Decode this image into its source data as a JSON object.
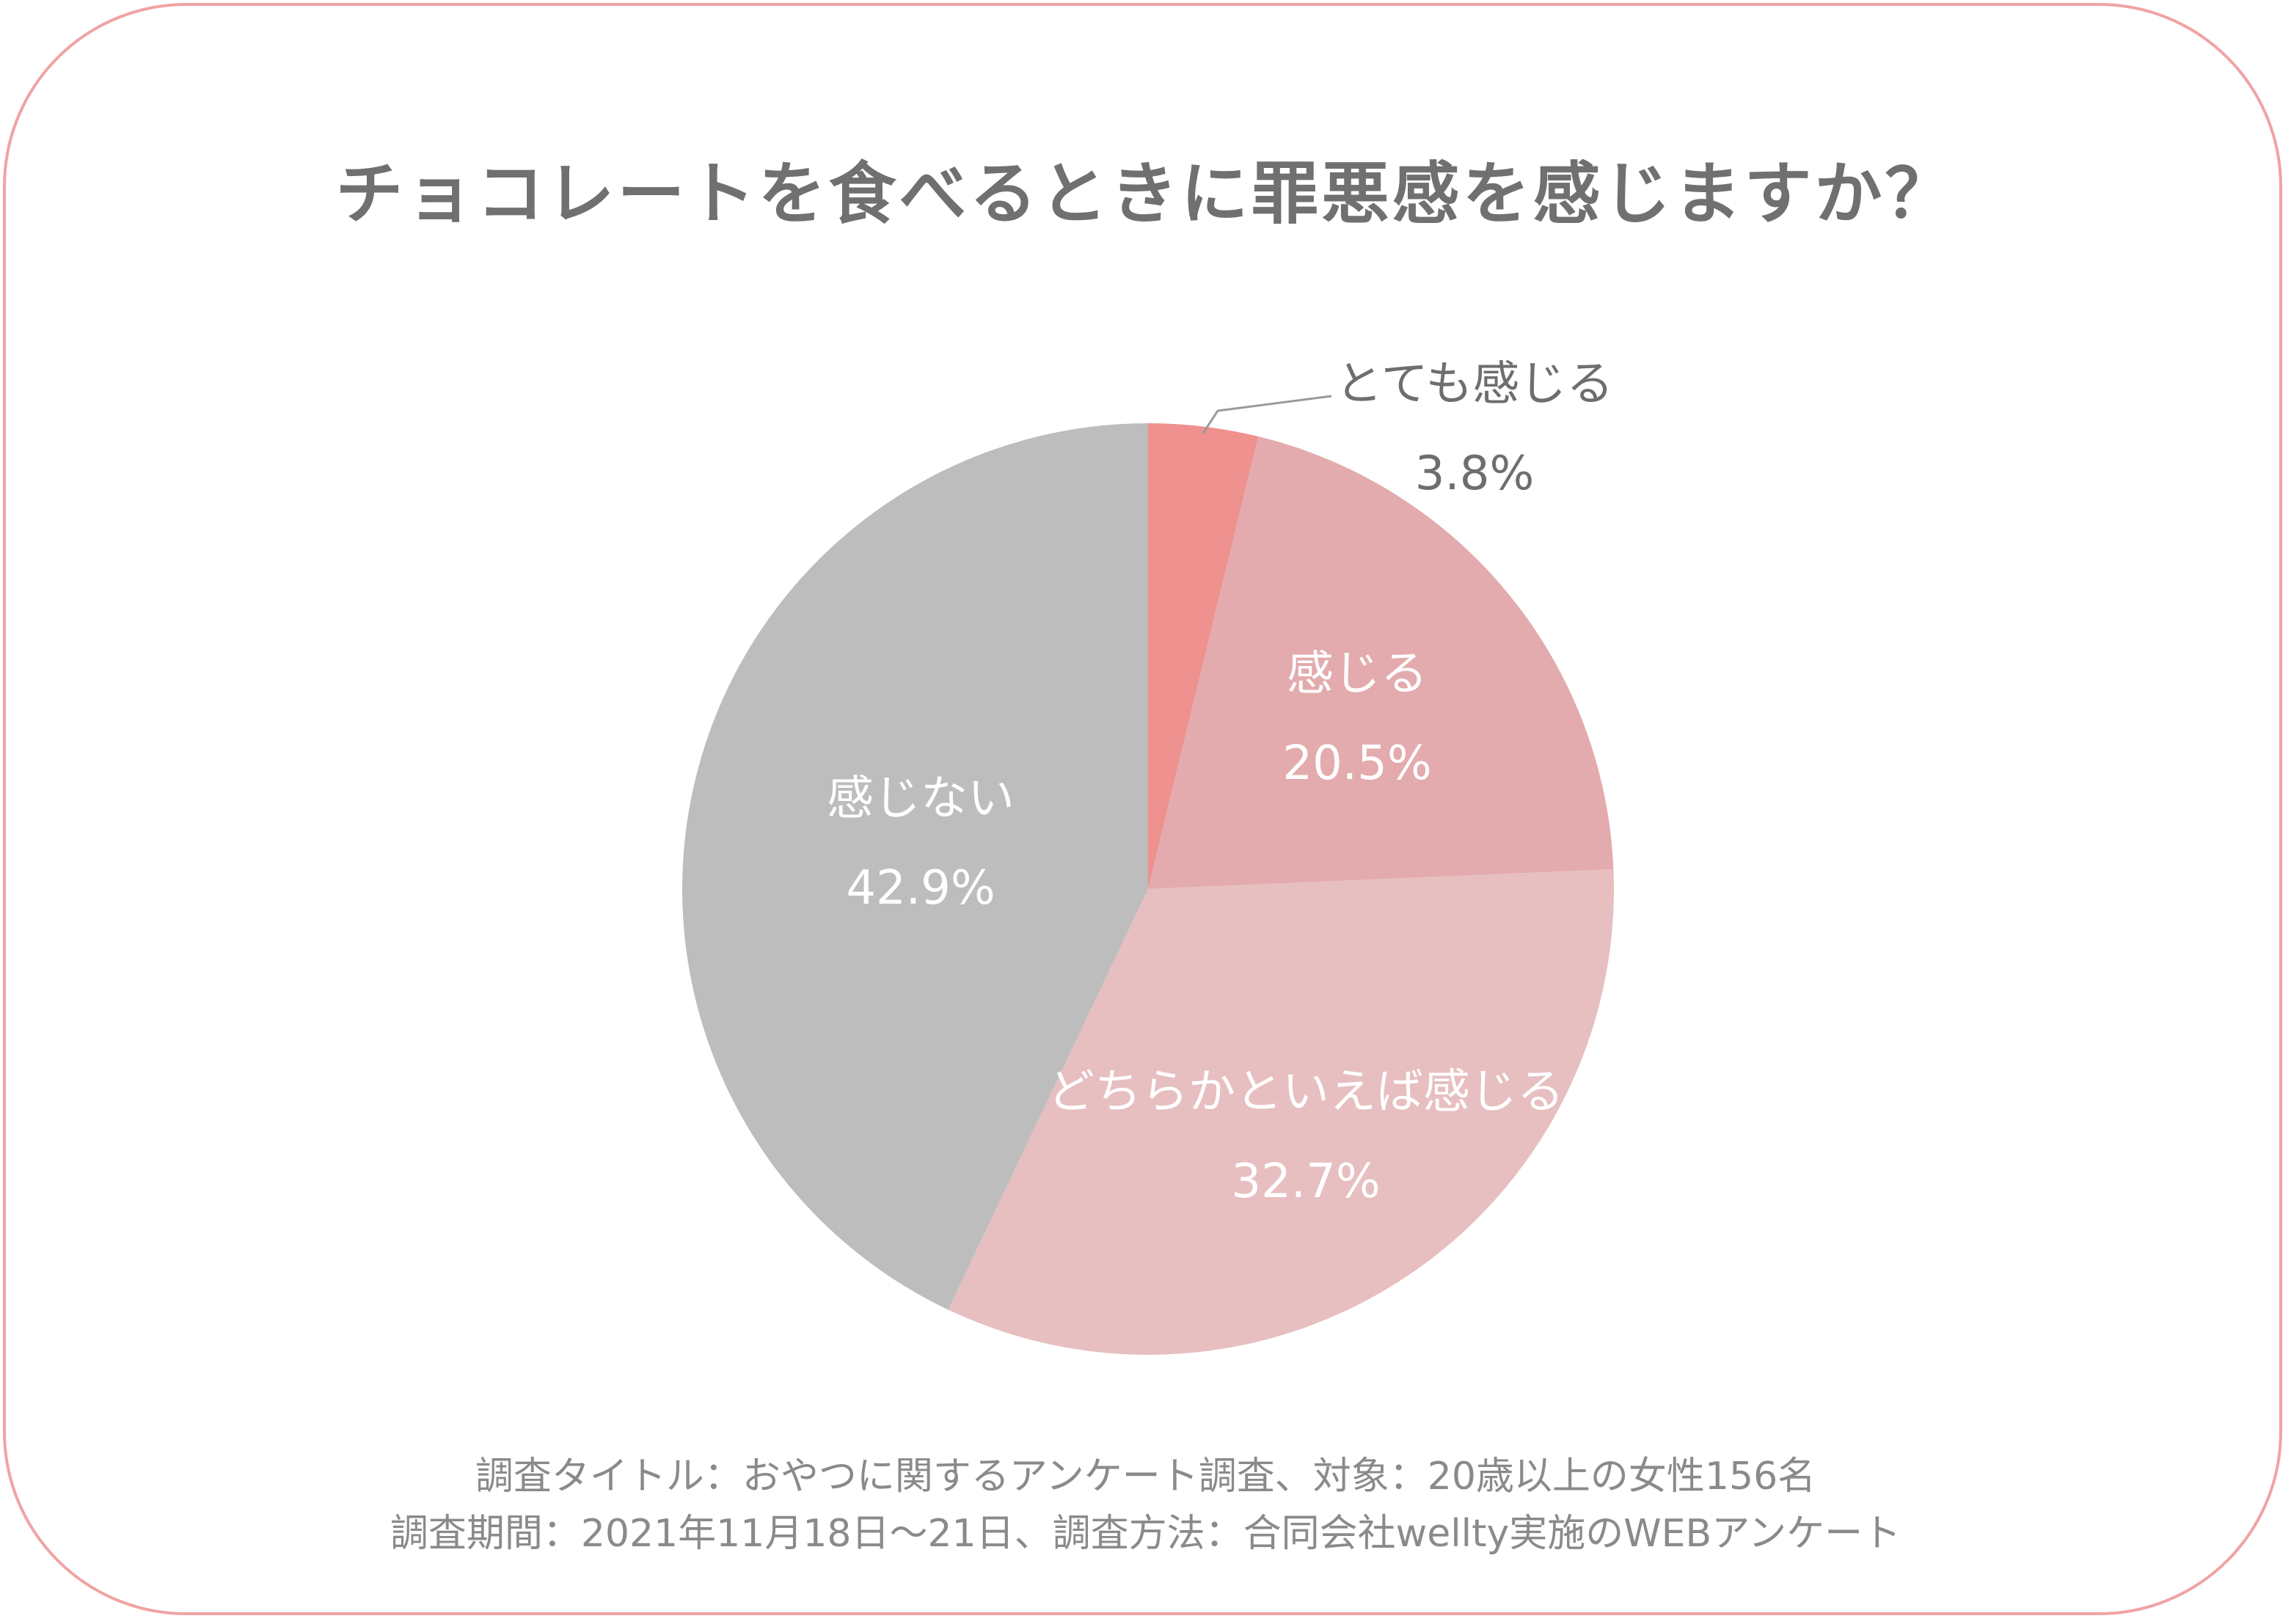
{
  "title": "チョコレートを食べるときに罪悪感を感じますか？",
  "colors": {
    "frame": "#f0a3a3",
    "text": "#707070",
    "note": "#8a8a8a",
    "slices": [
      "#ee918f",
      "#e3abad",
      "#e7bfc0",
      "#bdbdbd"
    ],
    "inside_label": "#ffffff",
    "outside_label": "#6e6e6e",
    "leader": "#9a9a9a"
  },
  "chart_data": {
    "type": "pie",
    "title": "チョコレートを食べるときに罪悪感を感じますか？",
    "categories": [
      "とても感じる",
      "感じる",
      "どちらかといえば感じる",
      "感じない"
    ],
    "values": [
      3.8,
      20.5,
      32.7,
      42.9
    ],
    "value_labels": [
      "3.8%",
      "20.5%",
      "32.7%",
      "42.9%"
    ],
    "start": "12 o'clock, clockwise"
  },
  "footnote": {
    "line1": "調査タイトル：おやつに関するアンケート調査、対象：20歳以上の女性156名",
    "line2": "調査期間：2021年11月18日～21日、調査方法：合同会社wellty実施のWEBアンケート"
  }
}
